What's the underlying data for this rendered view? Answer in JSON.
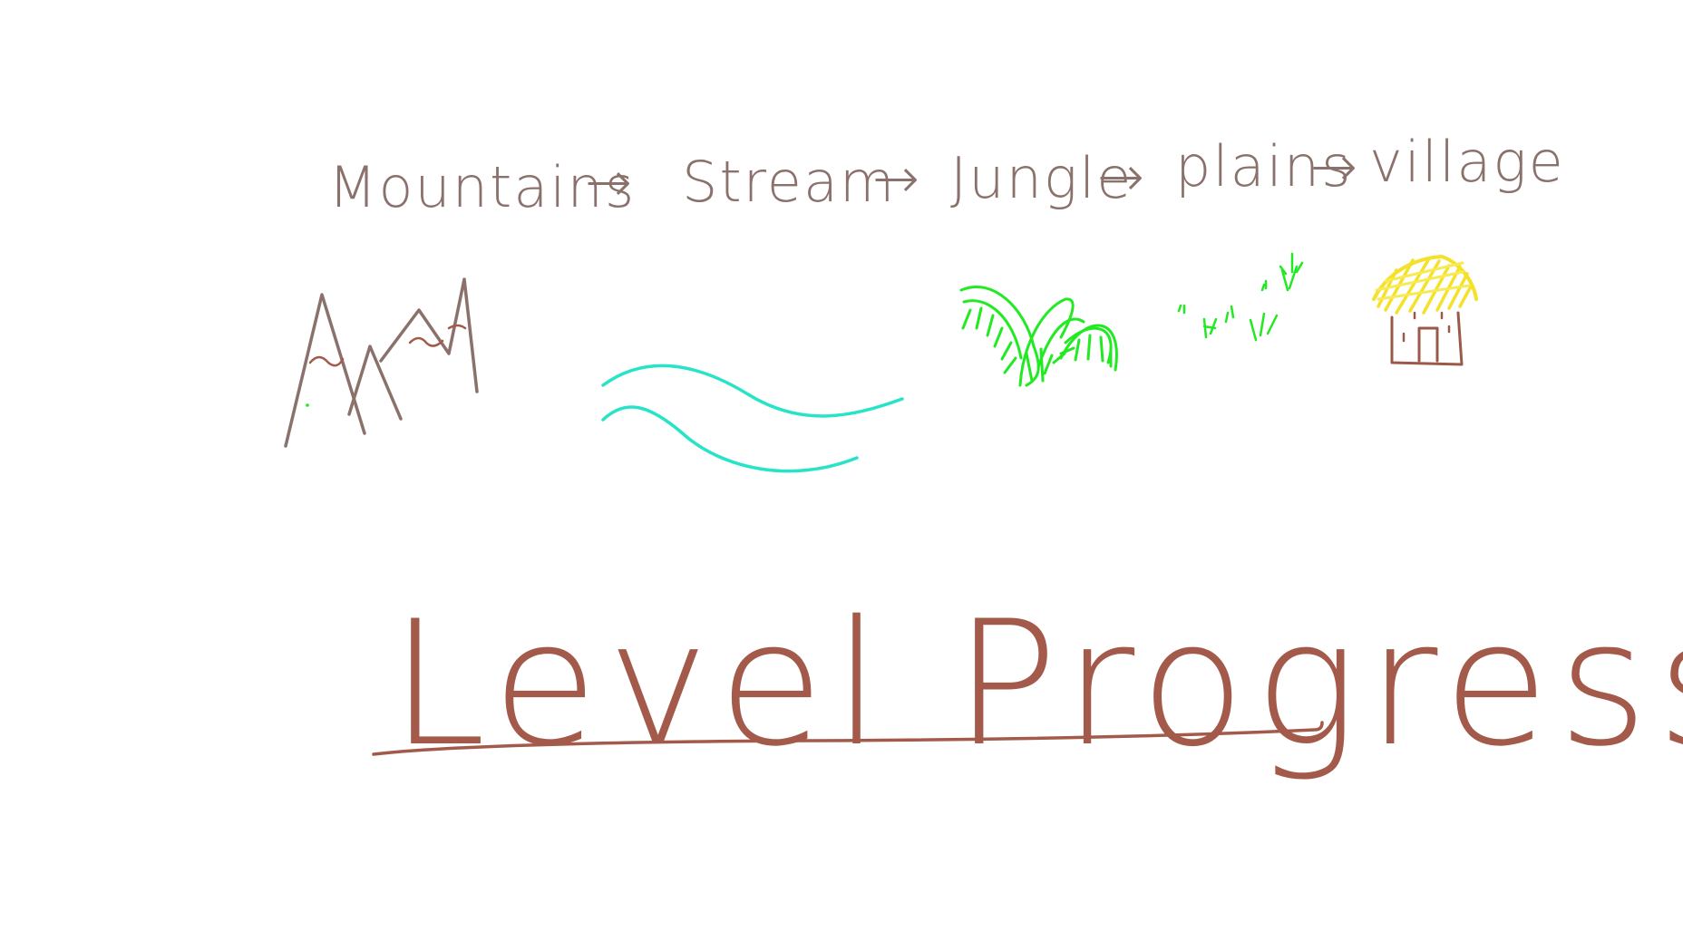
{
  "flow": {
    "steps": [
      "Mountains",
      "Stream",
      "Jungle",
      "plains",
      "village"
    ],
    "arrow": "→"
  },
  "title": "Level Progression",
  "icons": [
    "mountains-drawing",
    "stream-drawing",
    "jungle-drawing",
    "plains-drawing",
    "village-hut-drawing"
  ],
  "colors": {
    "ink": "#8b716b",
    "title": "#a45a4a",
    "stream": "#27e3c8",
    "jungle": "#22ea22",
    "straw": "#f5e12a",
    "hut": "#9b5a49"
  }
}
